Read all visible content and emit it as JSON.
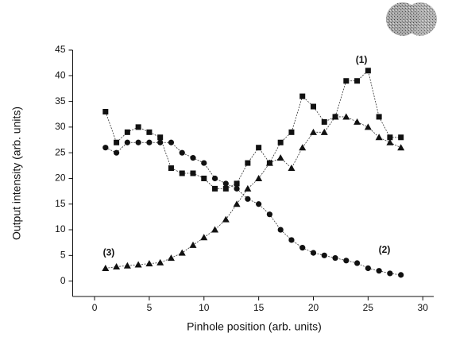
{
  "chart_data": {
    "type": "line",
    "xlabel": "Pinhole position (arb. units)",
    "ylabel": "Output intensity (arb. units)",
    "xlim": [
      -2,
      31
    ],
    "xticks": [
      0,
      5,
      10,
      15,
      20,
      25,
      30
    ],
    "ylim": [
      -3,
      45
    ],
    "yticks": [
      0,
      5,
      10,
      15,
      20,
      25,
      30,
      35,
      40,
      45
    ],
    "grid": false,
    "x": [
      1,
      2,
      3,
      4,
      5,
      6,
      7,
      8,
      9,
      10,
      11,
      12,
      13,
      14,
      15,
      16,
      17,
      18,
      19,
      20,
      21,
      22,
      23,
      24,
      25,
      26,
      27,
      28
    ],
    "series": [
      {
        "color": "#111111",
        "marker": "square",
        "values": [
          33,
          27,
          29,
          30,
          29,
          28,
          22,
          21,
          21,
          20,
          18,
          18,
          19,
          23,
          26,
          23,
          27,
          29,
          36,
          34,
          31,
          32,
          39,
          39,
          41,
          32,
          28,
          28
        ]
      },
      {
        "color": "#111111",
        "marker": "circle",
        "values": [
          26,
          25,
          27,
          27,
          27,
          27,
          27,
          25,
          24,
          23,
          20,
          19,
          18,
          16,
          15,
          13,
          10,
          8,
          6.5,
          5.5,
          5,
          4.5,
          4,
          3.5,
          2.5,
          2,
          1.5,
          1.2
        ]
      },
      {
        "color": "#111111",
        "marker": "triangle",
        "values": [
          2.5,
          2.8,
          3,
          3.2,
          3.4,
          3.6,
          4.5,
          5.5,
          7,
          8.5,
          10,
          12,
          15,
          18,
          20,
          23,
          24,
          22,
          26,
          29,
          29,
          32,
          32,
          31,
          30,
          28,
          27,
          26
        ]
      }
    ],
    "annotations": [
      {
        "text": "(1)",
        "x": 24.4,
        "y": 43
      },
      {
        "text": "(2)",
        "x": 26.5,
        "y": 6
      },
      {
        "text": "(3)",
        "x": 1.3,
        "y": 5.5
      }
    ]
  }
}
